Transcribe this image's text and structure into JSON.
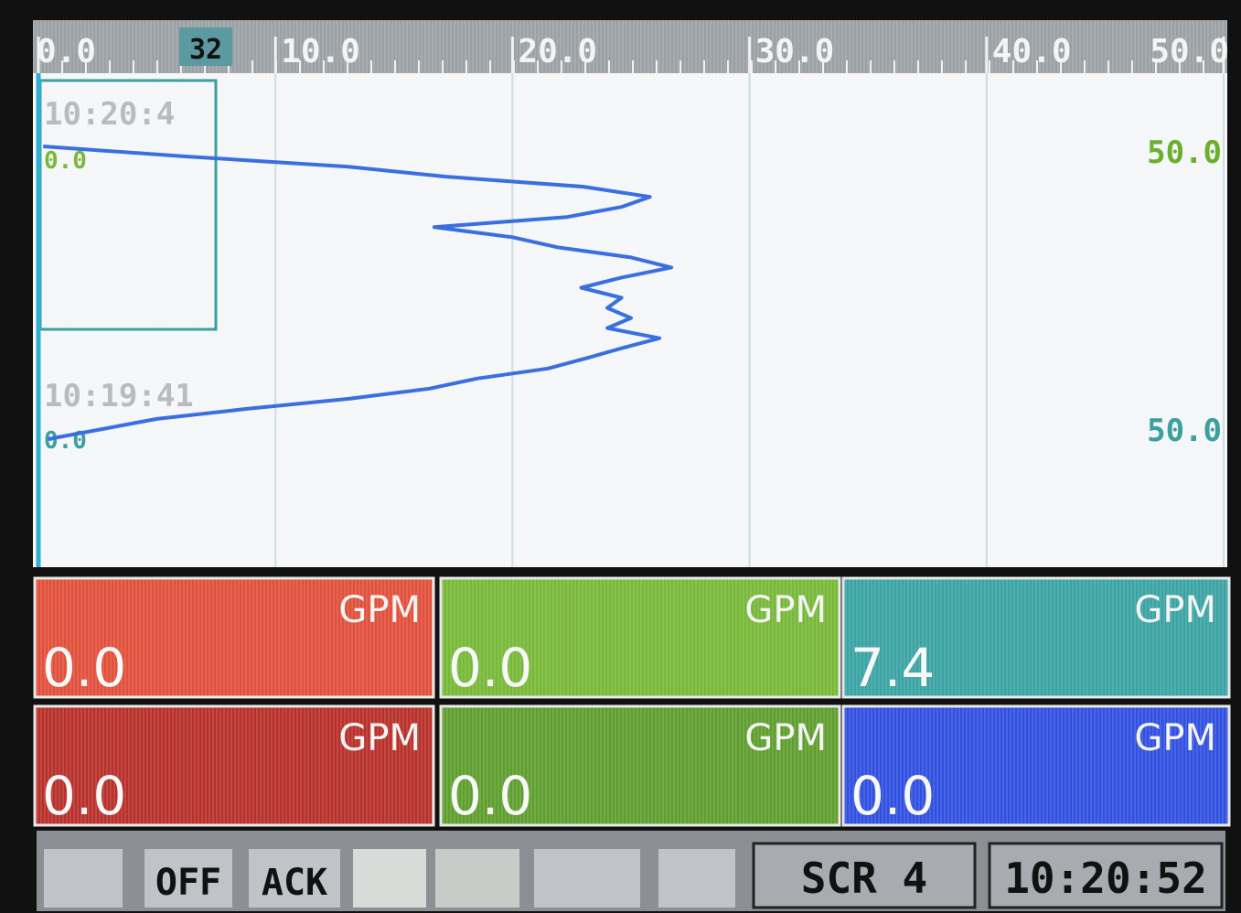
{
  "trend": {
    "xlim": [
      0,
      50
    ],
    "xticks": [
      {
        "value": 0,
        "label": "0.0"
      },
      {
        "value": 10,
        "label": "10.0"
      },
      {
        "value": 20,
        "label": "20.0"
      },
      {
        "value": 30,
        "label": "30.0"
      },
      {
        "value": 40,
        "label": "40.0"
      },
      {
        "value": 50,
        "label": "50.0"
      }
    ],
    "cursor_label": "32",
    "time_top": "10:20:4",
    "time_bottom": "10:19:41",
    "left_top": "0.0",
    "left_bottom": "0.0",
    "right_top": "50.0",
    "right_bottom": "50.0",
    "color": "#3a6fe0",
    "values": [
      0.2,
      6.2,
      13,
      17.2,
      23,
      25.8,
      24.6,
      22.3,
      16.7,
      20,
      21.9,
      25,
      26.7,
      24.6,
      22.9,
      24.6,
      24,
      25,
      24,
      26.2,
      24.6,
      23.1,
      21.5,
      18.5,
      16.5,
      13.1,
      8.8,
      5,
      2.7,
      0.4
    ]
  },
  "panels": [
    {
      "unit": "GPM",
      "value": "0.0",
      "color": "#e0503a"
    },
    {
      "unit": "GPM",
      "value": "0.0",
      "color": "#78b838"
    },
    {
      "unit": "GPM",
      "value": "7.4",
      "color": "#3aa3a3"
    },
    {
      "unit": "GPM",
      "value": "0.0",
      "color": "#b8302a"
    },
    {
      "unit": "GPM",
      "value": "0.0",
      "color": "#5e9e2e"
    },
    {
      "unit": "GPM",
      "value": "0.0",
      "color": "#3050e0"
    }
  ],
  "toolbar": {
    "off": "OFF",
    "ack": "ACK",
    "screen": "SCR 4",
    "clock": "10:20:52"
  }
}
